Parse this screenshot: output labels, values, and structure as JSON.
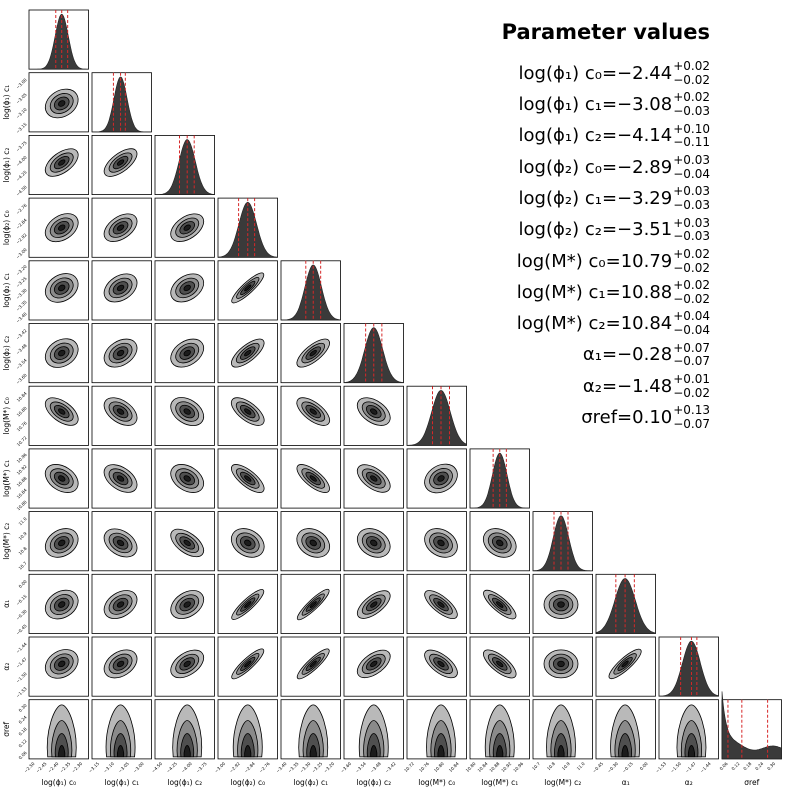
{
  "summary": {
    "title": "Parameter values",
    "rows": [
      {
        "label": "log(ϕ₁) c₀",
        "value": "−2.44",
        "plus": "+0.02",
        "minus": "−0.02"
      },
      {
        "label": "log(ϕ₁) c₁",
        "value": "−3.08",
        "plus": "+0.02",
        "minus": "−0.03"
      },
      {
        "label": "log(ϕ₁) c₂",
        "value": "−4.14",
        "plus": "+0.10",
        "minus": "−0.11"
      },
      {
        "label": "log(ϕ₂) c₀",
        "value": "−2.89",
        "plus": "+0.03",
        "minus": "−0.04"
      },
      {
        "label": "log(ϕ₂) c₁",
        "value": "−3.29",
        "plus": "+0.03",
        "minus": "−0.03"
      },
      {
        "label": "log(ϕ₂) c₂",
        "value": "−3.51",
        "plus": "+0.03",
        "minus": "−0.03"
      },
      {
        "label": "log(M*) c₀",
        "value": "10.79",
        "plus": "+0.02",
        "minus": "−0.02"
      },
      {
        "label": "log(M*) c₁",
        "value": "10.88",
        "plus": "+0.02",
        "minus": "−0.02"
      },
      {
        "label": "log(M*) c₂",
        "value": "10.84",
        "plus": "+0.04",
        "minus": "−0.04"
      },
      {
        "label": "α₁",
        "value": "−0.28",
        "plus": "+0.07",
        "minus": "−0.07"
      },
      {
        "label": "α₂",
        "value": "−1.48",
        "plus": "+0.01",
        "minus": "−0.02"
      },
      {
        "label": "σref",
        "value": "0.10",
        "plus": "+0.13",
        "minus": "−0.07"
      }
    ]
  },
  "chart_data": {
    "type": "corner",
    "parameters": [
      {
        "label": "log(ϕ₁) c₀",
        "median": -2.44,
        "plus": 0.02,
        "minus": 0.02,
        "range": [
          -2.55,
          -2.35
        ],
        "ticks": [
          "−2.50",
          "−2.45",
          "−2.40",
          "−2.35",
          "−2.30"
        ]
      },
      {
        "label": "log(ϕ₁) c₁",
        "median": -3.08,
        "plus": 0.02,
        "minus": 0.03,
        "range": [
          -3.2,
          -2.95
        ],
        "ticks": [
          "−3.15",
          "−3.10",
          "−3.05",
          "−3.00"
        ]
      },
      {
        "label": "log(ϕ₁) c₂",
        "median": -4.14,
        "plus": 0.1,
        "minus": 0.11,
        "range": [
          -4.6,
          -3.75
        ],
        "ticks": [
          "−4.50",
          "−4.25",
          "−4.00",
          "−3.75"
        ]
      },
      {
        "label": "log(ϕ₂) c₀",
        "median": -2.89,
        "plus": 0.03,
        "minus": 0.04,
        "range": [
          -3.02,
          -2.76
        ],
        "ticks": [
          "−3.00",
          "−2.92",
          "−2.84",
          "−2.76"
        ]
      },
      {
        "label": "log(ϕ₂) c₁",
        "median": -3.29,
        "plus": 0.03,
        "minus": 0.03,
        "range": [
          -3.42,
          -3.18
        ],
        "ticks": [
          "−3.40",
          "−3.35",
          "−3.30",
          "−3.25",
          "−3.20"
        ]
      },
      {
        "label": "log(ϕ₂) c₂",
        "median": -3.51,
        "plus": 0.03,
        "minus": 0.03,
        "range": [
          -3.62,
          -3.4
        ],
        "ticks": [
          "−3.60",
          "−3.54",
          "−3.48",
          "−3.42"
        ]
      },
      {
        "label": "log(M*) c₀",
        "median": 10.79,
        "plus": 0.02,
        "minus": 0.02,
        "range": [
          10.71,
          10.85
        ],
        "ticks": [
          "10.72",
          "10.76",
          "10.80",
          "10.84"
        ]
      },
      {
        "label": "log(M*) c₁",
        "median": 10.88,
        "plus": 0.02,
        "minus": 0.02,
        "range": [
          10.79,
          10.97
        ],
        "ticks": [
          "10.80",
          "10.84",
          "10.88",
          "10.92",
          "10.96"
        ]
      },
      {
        "label": "log(M*) c₂",
        "median": 10.84,
        "plus": 0.04,
        "minus": 0.04,
        "range": [
          10.68,
          11.02
        ],
        "ticks": [
          "10.7",
          "10.8",
          "10.9",
          "11.0"
        ]
      },
      {
        "label": "α₁",
        "median": -0.28,
        "plus": 0.07,
        "minus": 0.07,
        "range": [
          -0.5,
          -0.05
        ],
        "ticks": [
          "−0.45",
          "−0.30",
          "−0.15",
          "0.00"
        ]
      },
      {
        "label": "α₂",
        "median": -1.48,
        "plus": 0.01,
        "minus": 0.02,
        "range": [
          -1.54,
          -1.43
        ],
        "ticks": [
          "−1.53",
          "−1.50",
          "−1.47",
          "−1.44"
        ]
      },
      {
        "label": "σref",
        "median": 0.1,
        "plus": 0.13,
        "minus": 0.07,
        "range": [
          0.0,
          0.3
        ],
        "ticks": [
          "0.06",
          "0.12",
          "0.18",
          "0.24",
          "0.30"
        ]
      }
    ],
    "correlations": [
      [],
      [
        0.1
      ],
      [
        0.4,
        0.5
      ],
      [
        0.2,
        0.3,
        0.3
      ],
      [
        0.1,
        0.2,
        0.2,
        0.85
      ],
      [
        0.1,
        0.2,
        0.2,
        0.6,
        0.6
      ],
      [
        -0.4,
        -0.3,
        -0.2,
        -0.5,
        -0.5,
        -0.3
      ],
      [
        -0.2,
        -0.3,
        -0.2,
        -0.6,
        -0.6,
        -0.4,
        0.1
      ],
      [
        0.1,
        -0.2,
        -0.4,
        -0.1,
        -0.1,
        -0.1,
        -0.1,
        -0.1
      ],
      [
        0.1,
        0.2,
        0.2,
        0.85,
        0.9,
        0.5,
        -0.6,
        -0.7,
        0.0
      ],
      [
        0.1,
        0.2,
        0.3,
        0.85,
        0.85,
        0.4,
        -0.5,
        -0.6,
        0.0,
        0.8
      ],
      [
        0,
        0,
        0,
        0,
        0,
        0,
        0,
        0,
        0,
        0,
        0
      ]
    ],
    "colors": {
      "median_line": "#d62728",
      "fill": "#3a3a3a",
      "contour_fills": [
        "#b9b9b9",
        "#8a8a8a",
        "#4f4f4f",
        "#1c1c1c"
      ]
    },
    "grid": false
  }
}
